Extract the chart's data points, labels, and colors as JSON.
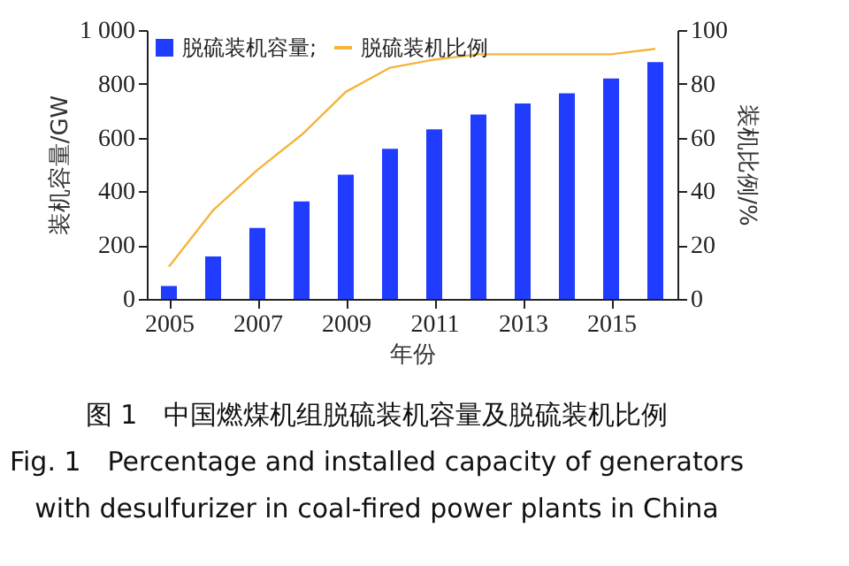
{
  "chart_data": {
    "type": "bar",
    "xlabel": "年份",
    "ylabel": "装机容量/GW",
    "y2label": "装机比例/%",
    "x": [
      2005,
      2006,
      2007,
      2008,
      2009,
      2010,
      2011,
      2012,
      2013,
      2014,
      2015,
      2016
    ],
    "series": [
      {
        "name": "脱硫装机容量;",
        "color": "#1f3cff",
        "values": [
          48,
          158,
          264,
          363,
          462,
          558,
          631,
          686,
          727,
          765,
          820,
          881
        ]
      },
      {
        "name": "脱硫装机比例",
        "color": "#f5b43c",
        "type": "line",
        "axis": "y2",
        "values": [
          12,
          33,
          48,
          61,
          77,
          86,
          89,
          91,
          91,
          91,
          91,
          93
        ]
      }
    ],
    "xlim": [
      2004.5,
      2016.5
    ],
    "xticks": [
      2005,
      2007,
      2009,
      2011,
      2013,
      2015
    ],
    "ylim": [
      0,
      1000
    ],
    "yticks": [
      0,
      200,
      400,
      600,
      800,
      {
        "value": 1000,
        "label": "1 000"
      }
    ],
    "y2lim": [
      0,
      100
    ],
    "y2ticks": [
      0,
      20,
      40,
      60,
      80,
      100
    ],
    "legend": "top left",
    "grid": false,
    "annotations": [
      "图 1　中国燃煤机组脱硫装机容量及脱硫装机比例",
      "Fig. 1　Percentage and installed capacity of generators",
      "with desulfurizer in coal-fired power plants in China"
    ]
  }
}
